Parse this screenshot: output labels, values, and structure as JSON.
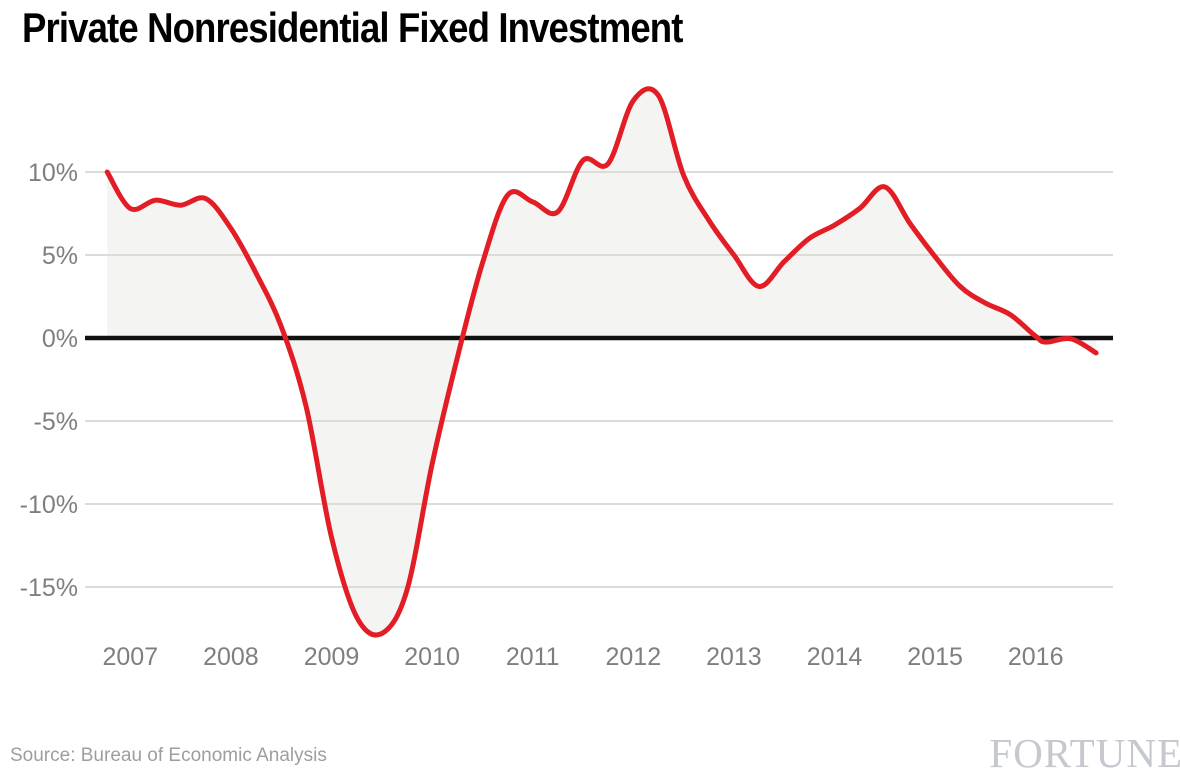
{
  "header": {
    "title": "Private Nonresidential Fixed Investment"
  },
  "footer": {
    "source": "Source: Bureau of Economic Analysis",
    "brand": "FORTUNE"
  },
  "chart_data": {
    "type": "area",
    "title": "Private Nonresidential Fixed Investment",
    "series_name": "Private nonresidential fixed investment, percent change",
    "xlabel": "",
    "ylabel": "",
    "x_ticks": {
      "values": [
        2007,
        2008,
        2009,
        2010,
        2011,
        2012,
        2013,
        2014,
        2015,
        2016
      ],
      "labels": [
        "2007",
        "2008",
        "2009",
        "2010",
        "2011",
        "2012",
        "2013",
        "2014",
        "2015",
        "2016"
      ]
    },
    "y_ticks": {
      "values": [
        10,
        5,
        0,
        -5,
        -10,
        -15
      ],
      "labels": [
        "10%",
        "5%",
        "0%",
        "-5%",
        "-10%",
        "-15%"
      ]
    },
    "xlim": [
      2006.55,
      2016.78
    ],
    "ylim": [
      -19,
      15.5
    ],
    "baseline": 0,
    "grid": true,
    "legend": "none",
    "points": [
      [
        2006.77,
        10.0
      ],
      [
        2007.0,
        7.8
      ],
      [
        2007.25,
        8.3
      ],
      [
        2007.5,
        8.0
      ],
      [
        2007.75,
        8.4
      ],
      [
        2008.0,
        6.6
      ],
      [
        2008.25,
        3.9
      ],
      [
        2008.5,
        0.7
      ],
      [
        2008.75,
        -4.2
      ],
      [
        2009.0,
        -12.0
      ],
      [
        2009.25,
        -16.8
      ],
      [
        2009.5,
        -17.8
      ],
      [
        2009.75,
        -15.2
      ],
      [
        2010.0,
        -7.6
      ],
      [
        2010.25,
        -1.2
      ],
      [
        2010.5,
        4.5
      ],
      [
        2010.75,
        8.6
      ],
      [
        2011.0,
        8.2
      ],
      [
        2011.25,
        7.6
      ],
      [
        2011.5,
        10.7
      ],
      [
        2011.75,
        10.5
      ],
      [
        2012.0,
        14.3
      ],
      [
        2012.25,
        14.6
      ],
      [
        2012.5,
        9.8
      ],
      [
        2012.75,
        7.1
      ],
      [
        2013.0,
        5.0
      ],
      [
        2013.25,
        3.1
      ],
      [
        2013.5,
        4.6
      ],
      [
        2013.75,
        6.0
      ],
      [
        2014.0,
        6.8
      ],
      [
        2014.25,
        7.8
      ],
      [
        2014.5,
        9.1
      ],
      [
        2014.75,
        6.9
      ],
      [
        2015.0,
        4.9
      ],
      [
        2015.25,
        3.1
      ],
      [
        2015.5,
        2.1
      ],
      [
        2015.75,
        1.4
      ],
      [
        2016.0,
        0.1
      ],
      [
        2016.1,
        -0.25
      ],
      [
        2016.35,
        -0.05
      ],
      [
        2016.6,
        -0.9
      ]
    ],
    "colors": {
      "line": "#e21d25",
      "fill": "#f4f4f2",
      "grid": "#dcdcd6",
      "zero_line": "#111111",
      "tick_label": "#7f7f7f",
      "title": "#000000",
      "source": "#9e9e9e",
      "brand": "#c5c8cf"
    }
  }
}
